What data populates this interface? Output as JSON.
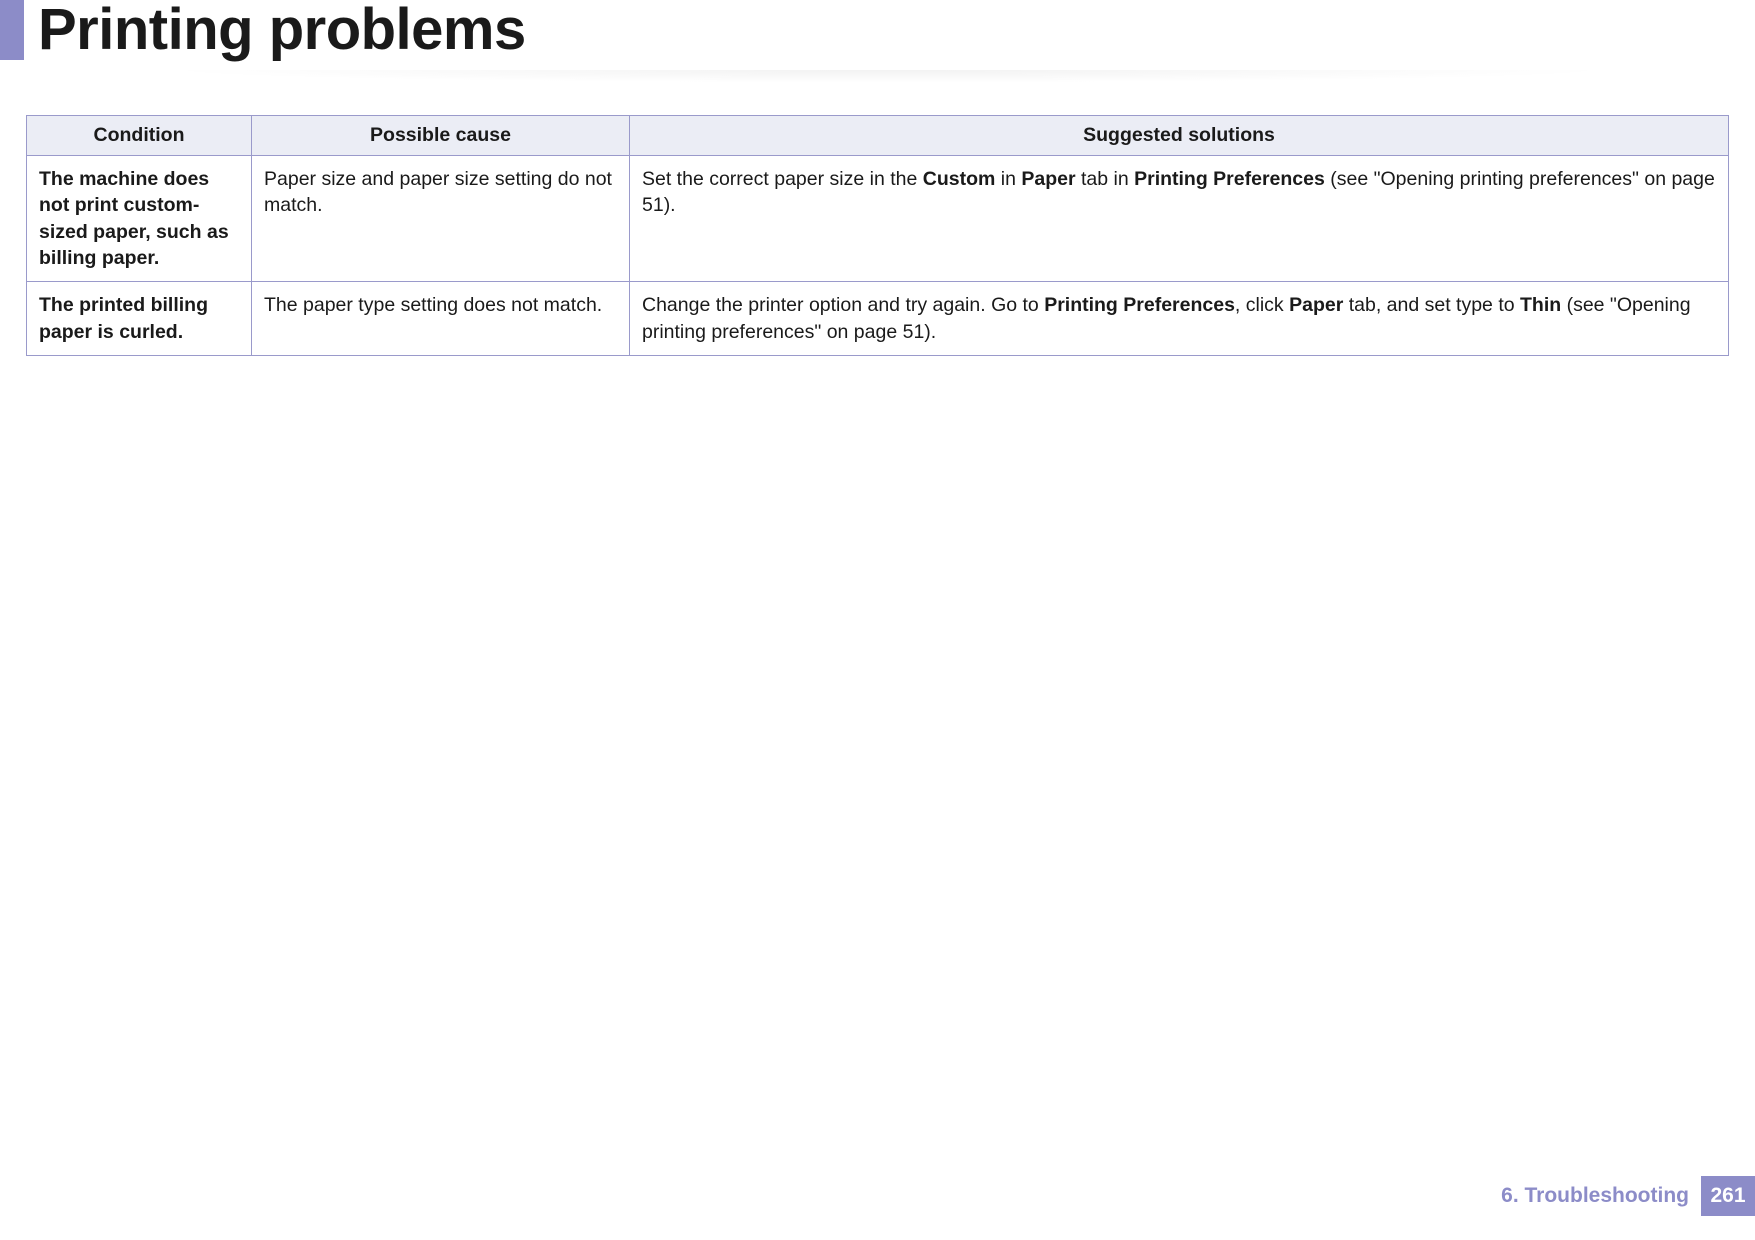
{
  "accent_color": "#8c8cc8",
  "header_bg": "#ebedf5",
  "border_color": "#9a9acb",
  "title": "Printing problems",
  "columns": [
    "Condition",
    "Possible cause",
    "Suggested solutions"
  ],
  "rows": [
    {
      "condition": "The machine does not print custom-sized paper, such as billing paper.",
      "cause": "Paper size and paper size setting do not match.",
      "solution_html": "Set the correct paper size in the <b>Custom</b> in <b>Paper</b> tab in <b>Printing Preferences</b> (see \"Opening printing preferences\" on page 51)."
    },
    {
      "condition": "The printed billing paper is curled.",
      "cause": "The paper type setting does not match.",
      "solution_html": "Change the printer option and try again. Go to <b>Printing Preferences</b>, click <b>Paper</b> tab, and set type to <b>Thin</b> (see \"Opening printing preferences\" on page 51)."
    }
  ],
  "footer": {
    "chapter": "6.  Troubleshooting",
    "page": "261"
  },
  "fonts": {
    "title_pt": 58,
    "body_pt": 19.5,
    "footer_pt": 21
  }
}
